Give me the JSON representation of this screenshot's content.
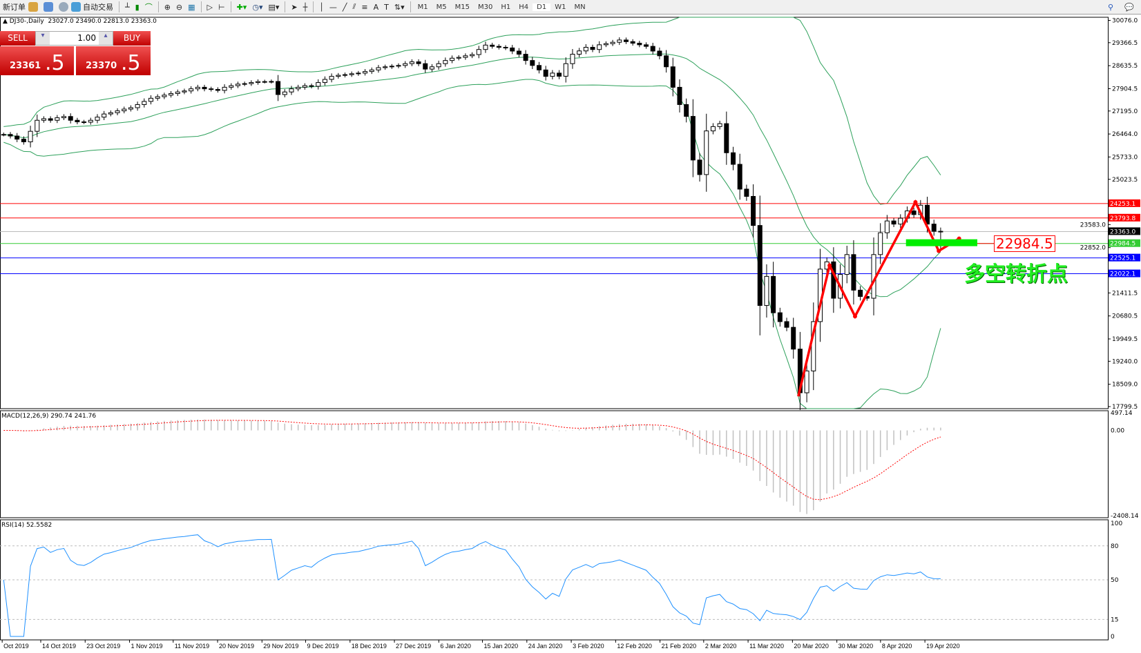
{
  "toolbar": {
    "new_order": "新订单",
    "autotrade": "自动交易",
    "timeframes": [
      "M1",
      "M5",
      "M15",
      "M30",
      "H1",
      "H4",
      "D1",
      "W1",
      "MN"
    ],
    "active_timeframe": "D1"
  },
  "header": {
    "symbol": "DJ30-,Daily",
    "ohlc": "23027.0 23490.0 22813.0 23363.0"
  },
  "trade_panel": {
    "sell_label": "SELL",
    "buy_label": "BUY",
    "lot": "1.00",
    "sell_big": "23361",
    "sell_small": ".5",
    "buy_big": "23370",
    "buy_small": ".5"
  },
  "annotations": {
    "level_label": "22984.5",
    "text": "多空转折点"
  },
  "macd_label": "MACD(12,26,9) 290.74 241.76",
  "rsi_label": "RSI(14) 52.5582",
  "colors": {
    "bull_band": "#2ca05a",
    "red_line": "#ff0000",
    "blue_line": "#0000ff",
    "green_line": "#00cc00",
    "rsi": "#1e90ff"
  },
  "chart_data": {
    "type": "candlestick",
    "symbol": "DJ30-",
    "timeframe": "Daily",
    "ylim": [
      17799.5,
      30076.0
    ],
    "y_ticks": [
      "30076.0",
      "29366.5",
      "28635.5",
      "27904.5",
      "27195.0",
      "26464.0",
      "25733.0",
      "25023.5",
      "23583.0",
      "22852.0",
      "21411.5",
      "20680.5",
      "19949.5",
      "19240.0",
      "18509.0",
      "17799.5"
    ],
    "x_ticks": [
      "Oct 2019",
      "14 Oct 2019",
      "23 Oct 2019",
      "1 Nov 2019",
      "11 Nov 2019",
      "20 Nov 2019",
      "29 Nov 2019",
      "9 Dec 2019",
      "18 Dec 2019",
      "27 Dec 2019",
      "6 Jan 2020",
      "15 Jan 2020",
      "24 Jan 2020",
      "3 Feb 2020",
      "12 Feb 2020",
      "21 Feb 2020",
      "2 Mar 2020",
      "11 Mar 2020",
      "20 Mar 2020",
      "30 Mar 2020",
      "8 Apr 2020",
      "19 Apr 2020"
    ],
    "close": [
      26450,
      26400,
      26300,
      26215,
      26550,
      26900,
      26950,
      26900,
      26980,
      27020,
      26900,
      26850,
      26840,
      26900,
      27000,
      27100,
      27140,
      27200,
      27255,
      27300,
      27400,
      27500,
      27600,
      27650,
      27700,
      27750,
      27800,
      27833,
      27900,
      27950,
      27900,
      27880,
      27850,
      27950,
      28000,
      28050,
      28065,
      28100,
      28130,
      28130,
      28134,
      27718,
      27800,
      27900,
      27950,
      28000,
      27980,
      28100,
      28200,
      28296,
      28330,
      28350,
      28380,
      28400,
      28450,
      28500,
      28573,
      28600,
      28620,
      28643,
      28700,
      28758,
      28700,
      28527,
      28600,
      28700,
      28800,
      28874,
      28900,
      28950,
      28989,
      29150,
      29290,
      29250,
      29220,
      29200,
      29100,
      29000,
      28800,
      28643,
      28500,
      28296,
      28400,
      28300,
      28700,
      29000,
      29105,
      29220,
      29150,
      29300,
      29336,
      29380,
      29452,
      29400,
      29350,
      29300,
      29250,
      29100,
      28950,
      28600,
      27949,
      27400,
      27024,
      25637,
      25174,
      26562,
      26700,
      26793,
      25868,
      25500,
      24712,
      24481,
      23556,
      21013,
      21938,
      20782,
      20500,
      20319,
      19626,
      18238,
      18932,
      20500,
      22169,
      22400,
      21244,
      22000,
      22631,
      21500,
      21300,
      21244,
      22631,
      23325,
      23700,
      23600,
      23787,
      24019,
      23903,
      24200,
      23600,
      23371,
      23363
    ],
    "last": {
      "open": 23027.0,
      "high": 23490.0,
      "low": 22813.0,
      "close": 23363.0
    },
    "indicators": [
      "Bollinger Bands",
      "MACD(12,26,9)",
      "RSI(14)"
    ],
    "horizontal_lines": [
      {
        "value": "24253.1",
        "color": "#ff0000"
      },
      {
        "value": "23793.8",
        "color": "#ff0000"
      },
      {
        "value": "23363.0",
        "color": "#000000"
      },
      {
        "value": "22984.5",
        "color": "#33cc33"
      },
      {
        "value": "22525.1",
        "color": "#0000ff"
      },
      {
        "value": "22022.1",
        "color": "#0000ff"
      }
    ],
    "macd": {
      "ticks": [
        "497.14",
        "0.00",
        "-2408.14"
      ],
      "ylim": [
        -2408.14,
        497.14
      ]
    },
    "rsi": {
      "ticks": [
        "100",
        "80",
        "50",
        "15",
        "0"
      ],
      "levels": [
        80,
        50,
        15
      ]
    }
  }
}
